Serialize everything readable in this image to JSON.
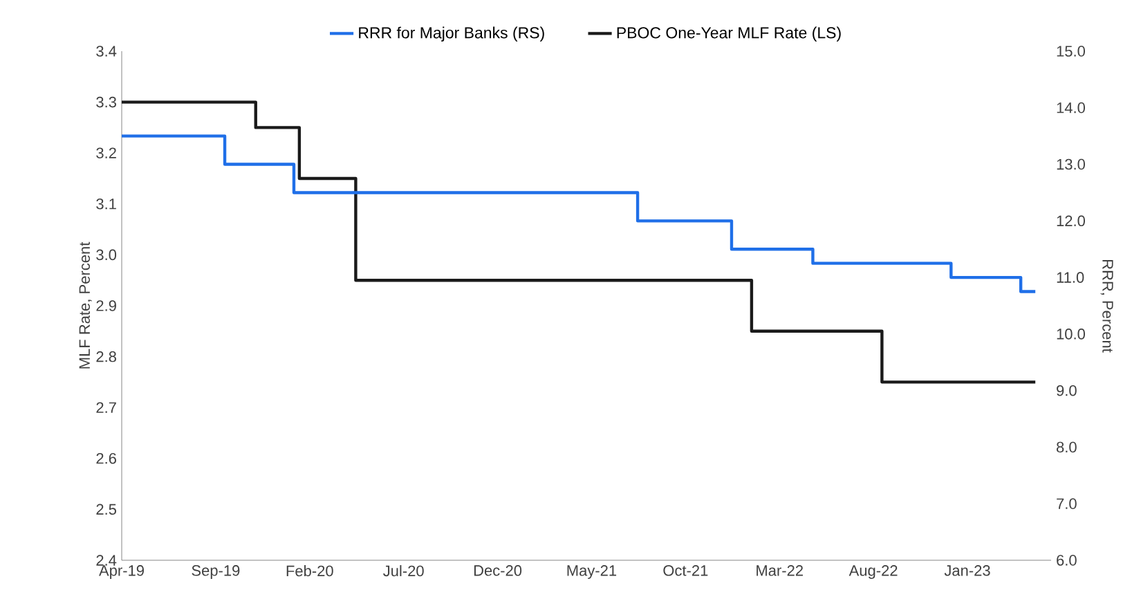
{
  "chart_data": {
    "type": "step",
    "xlabel": null,
    "ylabel": "MLF Rate, Percent",
    "y2label": "RRR, Percent",
    "series": [
      {
        "name": "PBOC One-Year MLF Rate (LS)",
        "color": "#1a1a1a",
        "x": [
          "2019-04-01",
          "2019-11-05",
          "2020-01-15",
          "2020-04-15",
          "2022-01-17",
          "2022-08-15",
          "2023-04-20"
        ],
        "values": [
          3.3,
          3.25,
          3.15,
          2.95,
          2.85,
          2.75,
          2.75
        ]
      },
      {
        "name": "RRR for Major Banks (RS)",
        "color": "#1f6fe8",
        "axis": "y2",
        "x": [
          "2019-04-01",
          "2019-09-16",
          "2020-01-06",
          "2021-07-15",
          "2021-12-15",
          "2022-04-25",
          "2022-12-05",
          "2023-03-27",
          "2023-04-20"
        ],
        "values": [
          13.5,
          13.0,
          12.5,
          12.0,
          11.5,
          11.25,
          11.0,
          10.75,
          10.75
        ]
      }
    ],
    "xlim": [
      "2019-04",
      "2023-05-15"
    ],
    "xticks": [
      {
        "value": "2019-04",
        "label": "Apr-19"
      },
      {
        "value": "2019-09",
        "label": "Sep-19"
      },
      {
        "value": "2020-02",
        "label": "Feb-20"
      },
      {
        "value": "2020-07",
        "label": "Jul-20"
      },
      {
        "value": "2020-12",
        "label": "Dec-20"
      },
      {
        "value": "2021-05",
        "label": "May-21"
      },
      {
        "value": "2021-10",
        "label": "Oct-21"
      },
      {
        "value": "2022-03",
        "label": "Mar-22"
      },
      {
        "value": "2022-08",
        "label": "Aug-22"
      },
      {
        "value": "2023-01",
        "label": "Jan-23"
      }
    ],
    "ylim": [
      2.4,
      3.4
    ],
    "yticks": [
      2.4,
      2.5,
      2.6,
      2.7,
      2.8,
      2.9,
      {
        "value": 3.0,
        "label": "3.0"
      },
      3.1,
      3.2,
      3.3,
      3.4
    ],
    "y2lim": [
      6,
      15
    ],
    "y2ticks": [
      {
        "value": 6,
        "label": "6.0"
      },
      {
        "value": 7,
        "label": "7.0"
      },
      {
        "value": 8,
        "label": "8.0"
      },
      {
        "value": 9,
        "label": "9.0"
      },
      {
        "value": 10,
        "label": "10.0"
      },
      {
        "value": 11,
        "label": "11.0"
      },
      {
        "value": 12,
        "label": "12.0"
      },
      {
        "value": 13,
        "label": "13.0"
      },
      {
        "value": 14,
        "label": "14.0"
      },
      {
        "value": 15,
        "label": "15.0"
      }
    ],
    "legend": "top",
    "grid": false,
    "line_style": "solid",
    "marker": "none"
  }
}
